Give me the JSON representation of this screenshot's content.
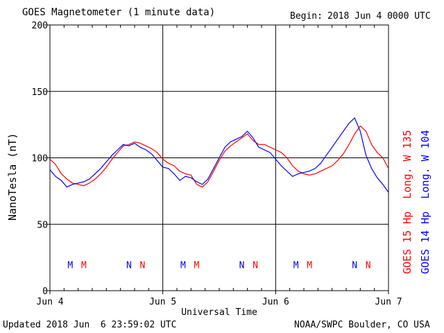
{
  "header": {
    "title": "GOES Magnetometer (1 minute data)",
    "begin_label": "Begin:",
    "begin_value": "2018 Jun 4 0000 UTC"
  },
  "footer": {
    "updated": "Updated 2018 Jun  6 23:59:02 UTC",
    "credit": "NOAA/SWPC Boulder, CO USA"
  },
  "colors": {
    "goes15": "#ff0000",
    "goes14": "#0000ff",
    "grid": "#000000"
  },
  "chart_data": {
    "type": "line",
    "title": "GOES Magnetometer (1 minute data)",
    "xlabel": "Universal Time",
    "ylabel": "NanoTesla (nT)",
    "xlim": [
      0,
      3
    ],
    "ylim": [
      0,
      200
    ],
    "y_ticks": [
      0,
      50,
      100,
      150,
      200
    ],
    "x_ticks": [
      {
        "x": 0,
        "label": "Jun 4"
      },
      {
        "x": 1,
        "label": "Jun 5"
      },
      {
        "x": 2,
        "label": "Jun 6"
      },
      {
        "x": 3,
        "label": "Jun 7"
      }
    ],
    "grid": true,
    "series": [
      {
        "name": "GOES 15 Hp  Long. W 135",
        "color": "#ff0000",
        "x": [
          0,
          0.05,
          0.1,
          0.15,
          0.2,
          0.25,
          0.3,
          0.35,
          0.4,
          0.45,
          0.5,
          0.55,
          0.6,
          0.65,
          0.7,
          0.75,
          0.8,
          0.85,
          0.9,
          0.95,
          1.0,
          1.05,
          1.1,
          1.15,
          1.2,
          1.25,
          1.3,
          1.35,
          1.4,
          1.45,
          1.5,
          1.55,
          1.6,
          1.65,
          1.7,
          1.75,
          1.8,
          1.85,
          1.9,
          1.95,
          2.0,
          2.05,
          2.1,
          2.15,
          2.2,
          2.25,
          2.3,
          2.35,
          2.4,
          2.45,
          2.5,
          2.55,
          2.6,
          2.65,
          2.7,
          2.75,
          2.8,
          2.85,
          2.9,
          2.95,
          3.0
        ],
        "y": [
          99,
          95,
          88,
          84,
          81,
          80,
          79,
          81,
          84,
          88,
          93,
          99,
          104,
          109,
          110,
          112,
          111,
          109,
          107,
          104,
          99,
          96,
          94,
          90,
          88,
          87,
          80,
          78,
          82,
          90,
          98,
          105,
          109,
          112,
          115,
          118,
          113,
          110,
          110,
          108,
          106,
          104,
          100,
          94,
          90,
          88,
          87,
          88,
          90,
          92,
          94,
          98,
          103,
          110,
          118,
          124,
          120,
          110,
          104,
          100,
          92
        ]
      },
      {
        "name": "GOES 14 Hp  Long. W 104",
        "color": "#0000ff",
        "x": [
          0,
          0.05,
          0.1,
          0.15,
          0.2,
          0.25,
          0.3,
          0.35,
          0.4,
          0.45,
          0.5,
          0.55,
          0.6,
          0.65,
          0.7,
          0.75,
          0.8,
          0.85,
          0.9,
          0.95,
          1.0,
          1.05,
          1.1,
          1.15,
          1.2,
          1.25,
          1.3,
          1.35,
          1.4,
          1.45,
          1.5,
          1.55,
          1.6,
          1.65,
          1.7,
          1.75,
          1.8,
          1.85,
          1.9,
          1.95,
          2.0,
          2.05,
          2.1,
          2.15,
          2.2,
          2.25,
          2.3,
          2.35,
          2.4,
          2.45,
          2.5,
          2.55,
          2.6,
          2.65,
          2.7,
          2.75,
          2.8,
          2.85,
          2.9,
          2.95,
          3.0
        ],
        "y": [
          91,
          86,
          83,
          78,
          80,
          81,
          82,
          84,
          88,
          92,
          97,
          102,
          106,
          110,
          109,
          111,
          108,
          106,
          103,
          98,
          93,
          92,
          88,
          83,
          86,
          85,
          82,
          80,
          84,
          92,
          100,
          108,
          112,
          114,
          116,
          120,
          115,
          108,
          106,
          104,
          99,
          94,
          90,
          86,
          88,
          89,
          90,
          92,
          96,
          102,
          108,
          114,
          120,
          126,
          130,
          120,
          102,
          92,
          85,
          80,
          74
        ]
      }
    ],
    "annotations": [
      {
        "x": 0.18,
        "label": "M",
        "color": "#0000ff"
      },
      {
        "x": 0.3,
        "label": "M",
        "color": "#ff0000"
      },
      {
        "x": 0.7,
        "label": "N",
        "color": "#0000ff"
      },
      {
        "x": 0.82,
        "label": "N",
        "color": "#ff0000"
      },
      {
        "x": 1.18,
        "label": "M",
        "color": "#0000ff"
      },
      {
        "x": 1.3,
        "label": "M",
        "color": "#ff0000"
      },
      {
        "x": 1.7,
        "label": "N",
        "color": "#0000ff"
      },
      {
        "x": 1.82,
        "label": "N",
        "color": "#ff0000"
      },
      {
        "x": 2.18,
        "label": "M",
        "color": "#0000ff"
      },
      {
        "x": 2.3,
        "label": "M",
        "color": "#ff0000"
      },
      {
        "x": 2.7,
        "label": "N",
        "color": "#0000ff"
      },
      {
        "x": 2.82,
        "label": "N",
        "color": "#ff0000"
      }
    ],
    "annotation_y": 17
  }
}
